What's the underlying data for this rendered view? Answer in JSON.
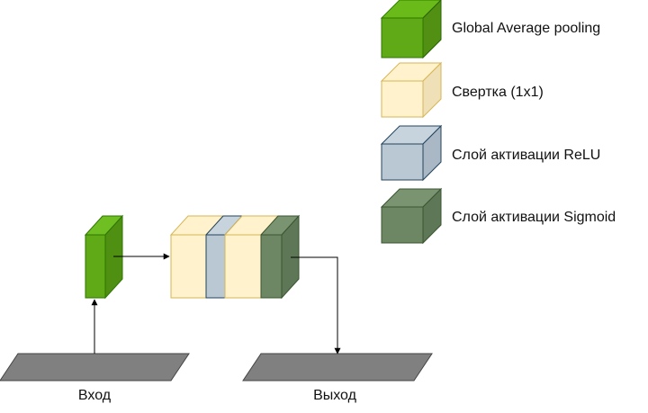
{
  "legend": [
    {
      "label": "Global Average pooling",
      "color": "#60a917"
    },
    {
      "label": "Свертка (1x1)",
      "color": "#fff2cc"
    },
    {
      "label": "Слой активации ReLU",
      "color": "#bac8d3"
    },
    {
      "label": "Слой активации Sigmoid",
      "color": "#6d8764"
    }
  ],
  "input_label": "Вход",
  "output_label": "Выход",
  "colors": {
    "gap": "#60a917",
    "conv": "#fff2cc",
    "relu": "#bac8d3",
    "sigmoid": "#6d8764",
    "io_plane": "#808080",
    "edge": "#000000"
  }
}
